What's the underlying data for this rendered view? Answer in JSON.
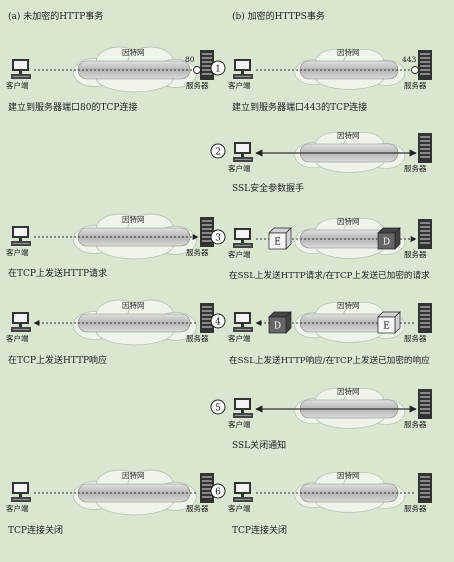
{
  "headers": {
    "left": "(a) 未加密的HTTP事务",
    "right": "(b) 加密的HTTPS事务"
  },
  "labels": {
    "client": "客户端",
    "server": "服务器",
    "internet": "因特网",
    "encrypted_marker": "E",
    "decrypted_marker": "D"
  },
  "left_steps": [
    {
      "caption": "建立到服务器端口80的TCP连接",
      "port": "80"
    },
    {
      "caption": "在TCP上发送HTTP请求"
    },
    {
      "caption": "在TCP上发送HTTP响应"
    },
    {
      "caption": "TCP连接关闭"
    }
  ],
  "right_steps": [
    {
      "number": "1",
      "caption": "建立到服务器端口443的TCP连接",
      "port": "443"
    },
    {
      "number": "2",
      "caption": "SSL安全参数握手"
    },
    {
      "number": "3",
      "caption": "在SSL上发送HTTP请求/在TCP上发送已加密的请求"
    },
    {
      "number": "4",
      "caption": "在SSL上发送HTTP响应/在TCP上发送已加密的响应"
    },
    {
      "number": "5",
      "caption": "SSL关闭通知"
    },
    {
      "number": "6",
      "caption": "TCP连接关闭"
    }
  ],
  "colors": {
    "background": "#d9e7d0",
    "tube": "#bcbcbc",
    "line": "#333333"
  }
}
